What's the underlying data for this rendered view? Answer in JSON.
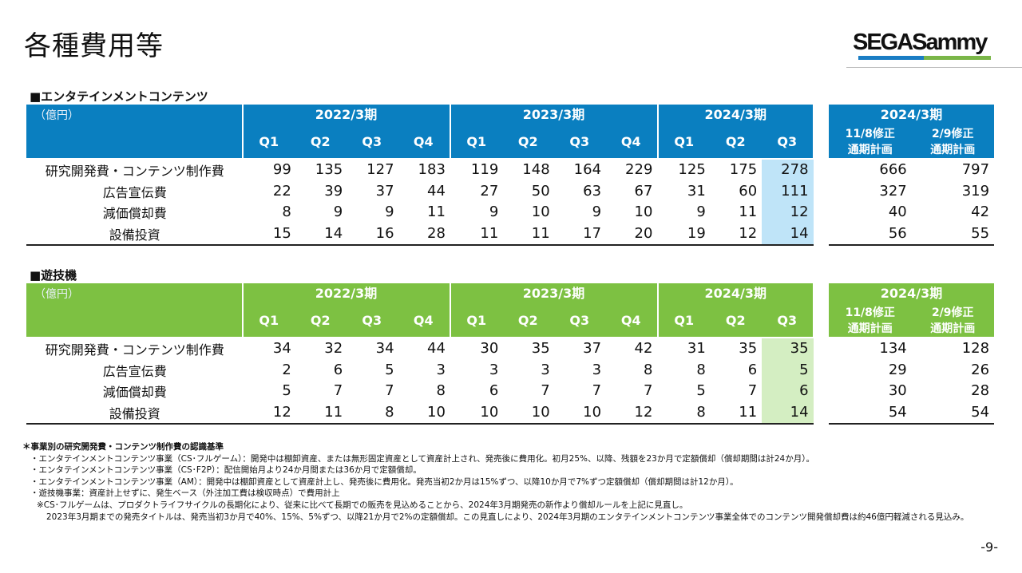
{
  "title": "各種費用等",
  "logo_text": "SEGASammy",
  "unit": "（億円）",
  "periods": [
    "2022/3期",
    "2023/3期",
    "2024/3期"
  ],
  "quarters": [
    [
      "Q1",
      "Q2",
      "Q3",
      "Q4"
    ],
    [
      "Q1",
      "Q2",
      "Q3",
      "Q4"
    ],
    [
      "Q1",
      "Q2",
      "Q3"
    ]
  ],
  "plan": {
    "period": "2024/3期",
    "cols": [
      [
        "11/8修正",
        "通期計画"
      ],
      [
        "2/9修正",
        "通期計画"
      ]
    ]
  },
  "row_labels": [
    "研究開発費・コンテンツ制作費",
    "広告宣伝費",
    "減価償却費",
    "設備投資"
  ],
  "sections": [
    {
      "title": "■エンタテインメントコンテンツ",
      "color": "#0a7fc0",
      "highlight": "#bfe4f8",
      "rows": [
        [
          [
            99,
            135,
            127,
            183
          ],
          [
            119,
            148,
            164,
            229
          ],
          [
            125,
            175,
            278
          ],
          [
            666,
            797
          ]
        ],
        [
          [
            22,
            39,
            37,
            44
          ],
          [
            27,
            50,
            63,
            67
          ],
          [
            31,
            60,
            111
          ],
          [
            327,
            319
          ]
        ],
        [
          [
            8,
            9,
            9,
            11
          ],
          [
            9,
            10,
            9,
            10
          ],
          [
            9,
            11,
            12
          ],
          [
            40,
            42
          ]
        ],
        [
          [
            15,
            14,
            16,
            28
          ],
          [
            11,
            11,
            17,
            20
          ],
          [
            19,
            12,
            14
          ],
          [
            56,
            55
          ]
        ]
      ]
    },
    {
      "title": "■遊技機",
      "color": "#7dc142",
      "highlight": "#d4eec2",
      "rows": [
        [
          [
            34,
            32,
            34,
            44
          ],
          [
            30,
            35,
            37,
            42
          ],
          [
            31,
            35,
            35
          ],
          [
            134,
            128
          ]
        ],
        [
          [
            2,
            6,
            5,
            3
          ],
          [
            3,
            3,
            3,
            8
          ],
          [
            8,
            6,
            5
          ],
          [
            29,
            26
          ]
        ],
        [
          [
            5,
            7,
            7,
            8
          ],
          [
            6,
            7,
            7,
            7
          ],
          [
            5,
            7,
            6
          ],
          [
            30,
            28
          ]
        ],
        [
          [
            12,
            11,
            8,
            10
          ],
          [
            10,
            10,
            10,
            12
          ],
          [
            8,
            11,
            14
          ],
          [
            54,
            54
          ]
        ]
      ]
    }
  ],
  "notes": {
    "heading": "＊事業別の研究開発費・コンテンツ制作費の認識基準",
    "items": [
      "・エンタテインメントコンテンツ事業（CS･フルゲーム）：開発中は棚卸資産、または無形固定資産として資産計上され、発売後に費用化。初月25%、以降、残額を23か月で定額償却（償却期間は計24か月）。",
      "・エンタテインメントコンテンツ事業（CS･F2P）：配信開始月より24か月間または36か月で定額償却。",
      "・エンタテインメントコンテンツ事業（AM）：開発中は棚卸資産として資産計上し、発売後に費用化。発売当初2か月は15%ずつ、以降10か月で7%ずつ定額償却（償却期間は計12か月）。",
      "・遊技機事業：資産計上せずに、発生ベース（外注加工費は検収時点）で費用計上"
    ],
    "sub1": "※CS･フルゲームは、プロダクトライフサイクルの長期化により、従来に比べて長期での販売を見込めることから、2024年3月期発売の新作より償却ルールを上記に見直し。",
    "sub2": "2023年3月期までの発売タイトルは、発売当初3か月で40%、15%、5%ずつ、以降21か月で2%の定額償却。この見直しにより、2024年3月期のエンタテインメントコンテンツ事業全体でのコンテンツ開発償却費は約46億円軽減される見込み。"
  },
  "page_number": "-9-"
}
